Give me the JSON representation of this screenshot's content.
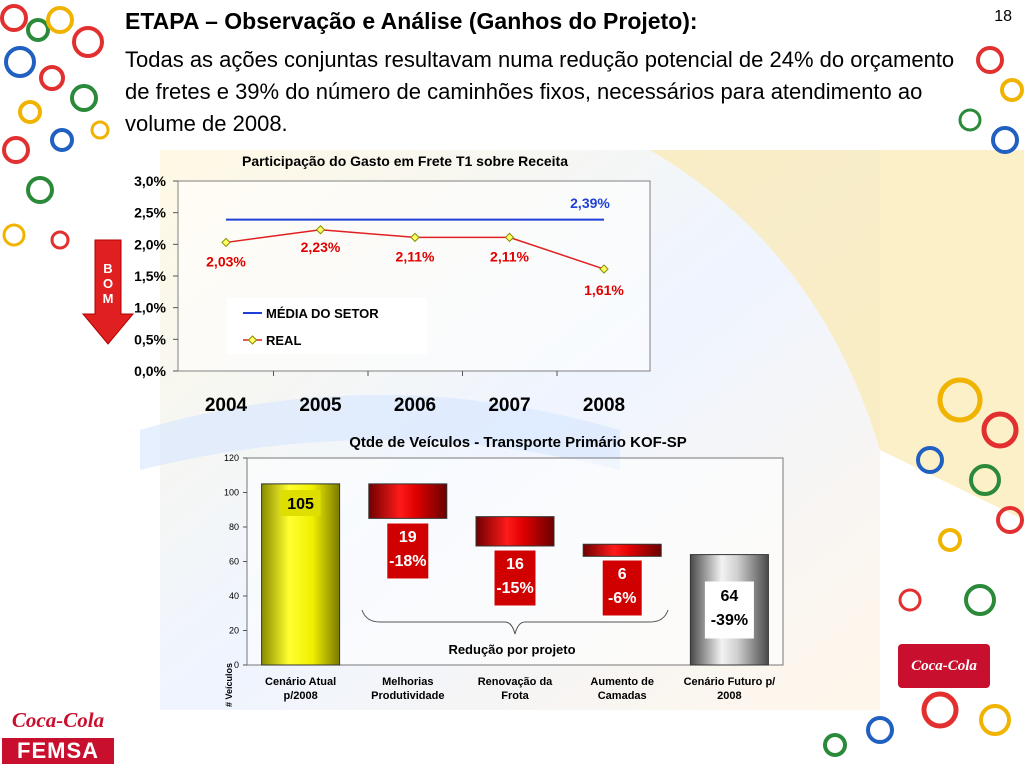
{
  "page_number": "18",
  "title": "ETAPA – Observação e Análise (Ganhos do Projeto):",
  "subtitle": "Todas as ações conjuntas resultavam numa redução potencial de 24% do orçamento de fretes e 39% do número de caminhões fixos, necessários para atendimento ao volume de 2008.",
  "bom_letters": [
    "B",
    "O",
    "M"
  ],
  "colors": {
    "media_line": "#1f3fd6",
    "real_line": "#e02020",
    "real_marker": "#ffff66",
    "yellow_bar": "#dede00",
    "red_bar": "#d00000",
    "gray_bar": "#8a8a8a",
    "red_label": "#e00000",
    "arrow": "#e02020"
  },
  "chart_data": [
    {
      "type": "line",
      "title": "Participação do Gasto em Frete T1 sobre Receita",
      "x": [
        "2004",
        "2005",
        "2006",
        "2007",
        "2008"
      ],
      "ylim": [
        0,
        3.0
      ],
      "yticks": [
        "0,0%",
        "0,5%",
        "1,0%",
        "1,5%",
        "2,0%",
        "2,5%",
        "3,0%"
      ],
      "series": [
        {
          "name": "MÉDIA DO SETOR",
          "values": [
            2.39,
            2.39,
            2.39,
            2.39,
            2.39
          ],
          "label": "2,39%"
        },
        {
          "name": "REAL",
          "values": [
            2.03,
            2.23,
            2.11,
            2.11,
            1.61
          ],
          "labels": [
            "2,03%",
            "2,23%",
            "2,11%",
            "2,11%",
            "1,61%"
          ]
        }
      ],
      "legend": "inside-lower-left",
      "grid": false
    },
    {
      "type": "bar",
      "title": "Qtde de Veículos - Transporte Primário KOF-SP",
      "ylabel": "# Veículos",
      "ylim": [
        0,
        120
      ],
      "yticks": [
        "0",
        "20",
        "40",
        "60",
        "80",
        "100",
        "120"
      ],
      "categories": [
        "Cenário Atual p/2008",
        "Melhorias Produtividade",
        "Renovação da Frota",
        "Aumento de Camadas",
        "Cenário Futuro p/ 2008"
      ],
      "category_lines": [
        [
          "Cenário Atual",
          "p/2008"
        ],
        [
          "Melhorias",
          "Produtividade"
        ],
        [
          "Renovação da",
          "Frota"
        ],
        [
          "Aumento de",
          "Camadas"
        ],
        [
          "Cenário Futuro p/",
          "2008"
        ]
      ],
      "bars": [
        {
          "kind": "total",
          "value": 105,
          "low": 0,
          "high": 105,
          "labels": [
            "105"
          ]
        },
        {
          "kind": "reduction",
          "value": 19,
          "low": 85,
          "high": 105,
          "labels": [
            "19",
            "-18%"
          ]
        },
        {
          "kind": "reduction",
          "value": 16,
          "low": 69,
          "high": 86,
          "labels": [
            "16",
            "-15%"
          ]
        },
        {
          "kind": "reduction",
          "value": 6,
          "low": 63,
          "high": 70,
          "labels": [
            "6",
            "-6%"
          ]
        },
        {
          "kind": "total",
          "value": 64,
          "low": 0,
          "high": 64,
          "labels": [
            "64",
            "-39%"
          ]
        }
      ],
      "annotation": "Redução por projeto"
    }
  ]
}
